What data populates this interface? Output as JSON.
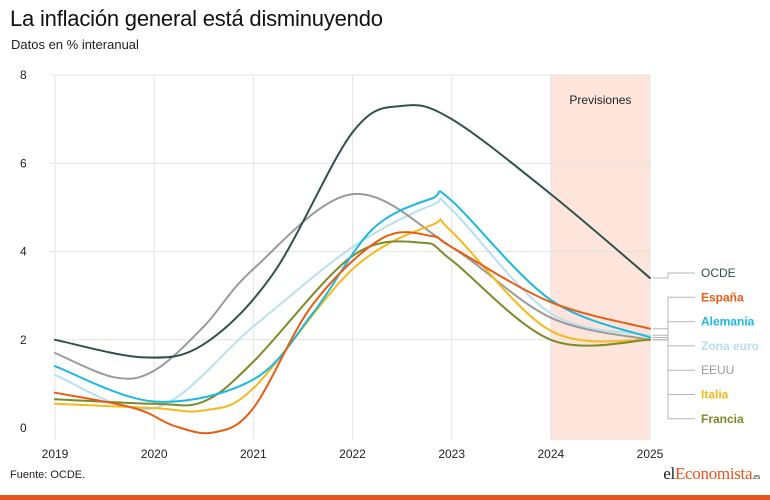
{
  "header": {
    "title": "La inflación general está disminuyendo",
    "subtitle": "Datos en % interanual"
  },
  "footer": {
    "source": "Fuente: OCDE.",
    "brand_prefix": "el",
    "brand_accent": "Economista",
    "brand_suffix": ".es"
  },
  "chart_data": {
    "type": "line",
    "x": [
      2019,
      2020,
      2021,
      2022,
      2023,
      2024,
      2025
    ],
    "xlim": [
      2019,
      2025
    ],
    "ylim": [
      0,
      8
    ],
    "yticks": [
      0,
      2,
      4,
      6,
      8
    ],
    "grid": true,
    "forecast_region": {
      "label": "Previsiones",
      "x_start": 2024,
      "x_end": 2025,
      "color": "#fde5dc"
    },
    "series": [
      {
        "name": "OCDE",
        "color": "#2f524f",
        "points": [
          [
            2019,
            2.0
          ],
          [
            2019.9,
            1.6
          ],
          [
            2020.5,
            1.9
          ],
          [
            2021.2,
            3.5
          ],
          [
            2022,
            6.7
          ],
          [
            2022.5,
            7.3
          ],
          [
            2023,
            7.0
          ],
          [
            2024,
            5.3
          ],
          [
            2025,
            3.4
          ]
        ]
      },
      {
        "name": "España",
        "color": "#e85d13",
        "points": [
          [
            2019,
            0.8
          ],
          [
            2019.8,
            0.45
          ],
          [
            2020.2,
            0.05
          ],
          [
            2020.6,
            -0.1
          ],
          [
            2021,
            0.45
          ],
          [
            2021.6,
            2.8
          ],
          [
            2022.3,
            4.3
          ],
          [
            2022.8,
            4.35
          ],
          [
            2023,
            4.1
          ],
          [
            2024,
            2.85
          ],
          [
            2025,
            2.25
          ]
        ]
      },
      {
        "name": "Alemania",
        "color": "#1ab9e0",
        "points": [
          [
            2019,
            1.4
          ],
          [
            2020,
            0.6
          ],
          [
            2021,
            1.1
          ],
          [
            2021.6,
            2.6
          ],
          [
            2022.2,
            4.5
          ],
          [
            2022.8,
            5.2
          ],
          [
            2023,
            5.15
          ],
          [
            2024,
            2.9
          ],
          [
            2025,
            2.05
          ]
        ]
      },
      {
        "name": "Zona euro",
        "color": "#b8dff0",
        "points": [
          [
            2019,
            1.2
          ],
          [
            2020,
            0.45
          ],
          [
            2021,
            2.3
          ],
          [
            2022,
            4.1
          ],
          [
            2022.8,
            5.05
          ],
          [
            2023,
            4.95
          ],
          [
            2024,
            2.6
          ],
          [
            2025,
            2.1
          ]
        ]
      },
      {
        "name": "EEUU",
        "color": "#9a9a9a",
        "points": [
          [
            2019,
            1.7
          ],
          [
            2019.6,
            1.15
          ],
          [
            2020,
            1.3
          ],
          [
            2020.5,
            2.3
          ],
          [
            2021,
            3.6
          ],
          [
            2022,
            5.3
          ],
          [
            2023,
            4.1
          ],
          [
            2024,
            2.5
          ],
          [
            2025,
            2.0
          ]
        ]
      },
      {
        "name": "Italia",
        "color": "#f5b91c",
        "points": [
          [
            2019,
            0.55
          ],
          [
            2020,
            0.45
          ],
          [
            2020.5,
            0.4
          ],
          [
            2021,
            0.9
          ],
          [
            2022,
            3.6
          ],
          [
            2022.8,
            4.6
          ],
          [
            2023,
            4.45
          ],
          [
            2024,
            2.2
          ],
          [
            2025,
            2.0
          ]
        ]
      },
      {
        "name": "Francia",
        "color": "#7d8a28",
        "points": [
          [
            2019,
            0.65
          ],
          [
            2020,
            0.55
          ],
          [
            2020.5,
            0.6
          ],
          [
            2021,
            1.5
          ],
          [
            2022,
            3.9
          ],
          [
            2022.7,
            4.2
          ],
          [
            2023,
            3.8
          ],
          [
            2024,
            2.0
          ],
          [
            2025,
            2.0
          ]
        ]
      }
    ],
    "legend": [
      {
        "label": "OCDE",
        "color": "#2f524f"
      },
      {
        "label": "España",
        "color": "#e85d13"
      },
      {
        "label": "Alemania",
        "color": "#1ab9e0"
      },
      {
        "label": "Zona euro",
        "color": "#b8dff0"
      },
      {
        "label": "EEUU",
        "color": "#9a9a9a"
      },
      {
        "label": "Italia",
        "color": "#f5b91c"
      },
      {
        "label": "Francia",
        "color": "#7d8a28"
      }
    ]
  }
}
